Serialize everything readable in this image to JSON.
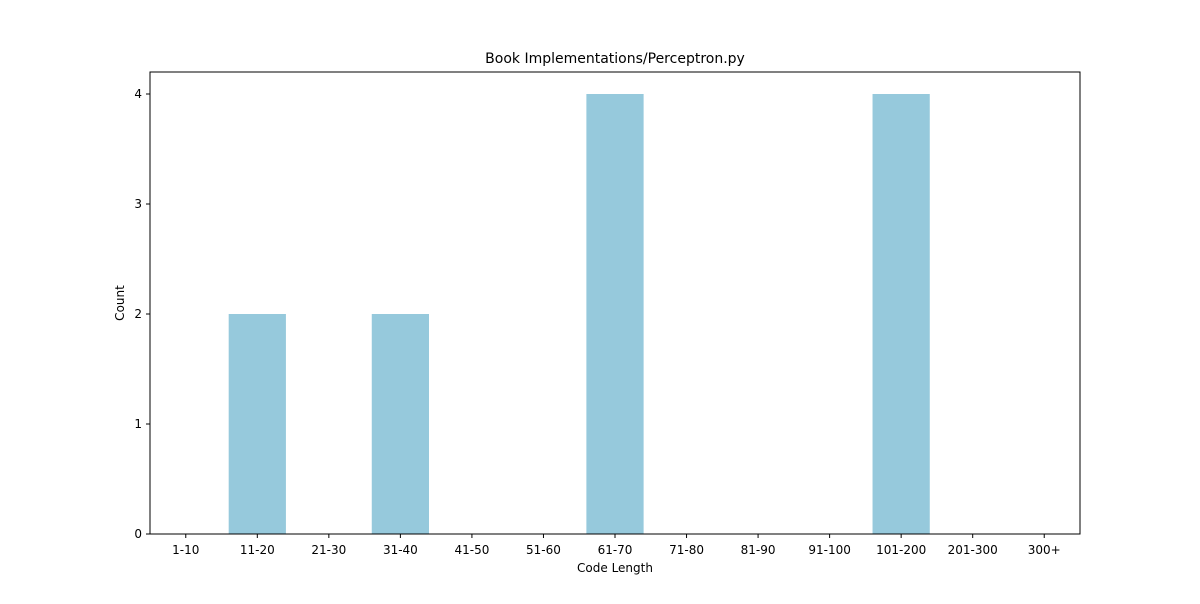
{
  "chart_data": {
    "type": "bar",
    "title": "Book Implementations/Perceptron.py",
    "xlabel": "Code Length",
    "ylabel": "Count",
    "categories": [
      "1-10",
      "11-20",
      "21-30",
      "31-40",
      "41-50",
      "51-60",
      "61-70",
      "71-80",
      "81-90",
      "91-100",
      "101-200",
      "201-300",
      "300+"
    ],
    "values": [
      0,
      2,
      0,
      2,
      0,
      0,
      4,
      0,
      0,
      0,
      4,
      0,
      0
    ],
    "ylim": [
      0,
      4.2
    ],
    "yticks": [
      0,
      1,
      2,
      3,
      4
    ],
    "grid": false,
    "legend": "none",
    "bar_color": "#96c9dc"
  }
}
